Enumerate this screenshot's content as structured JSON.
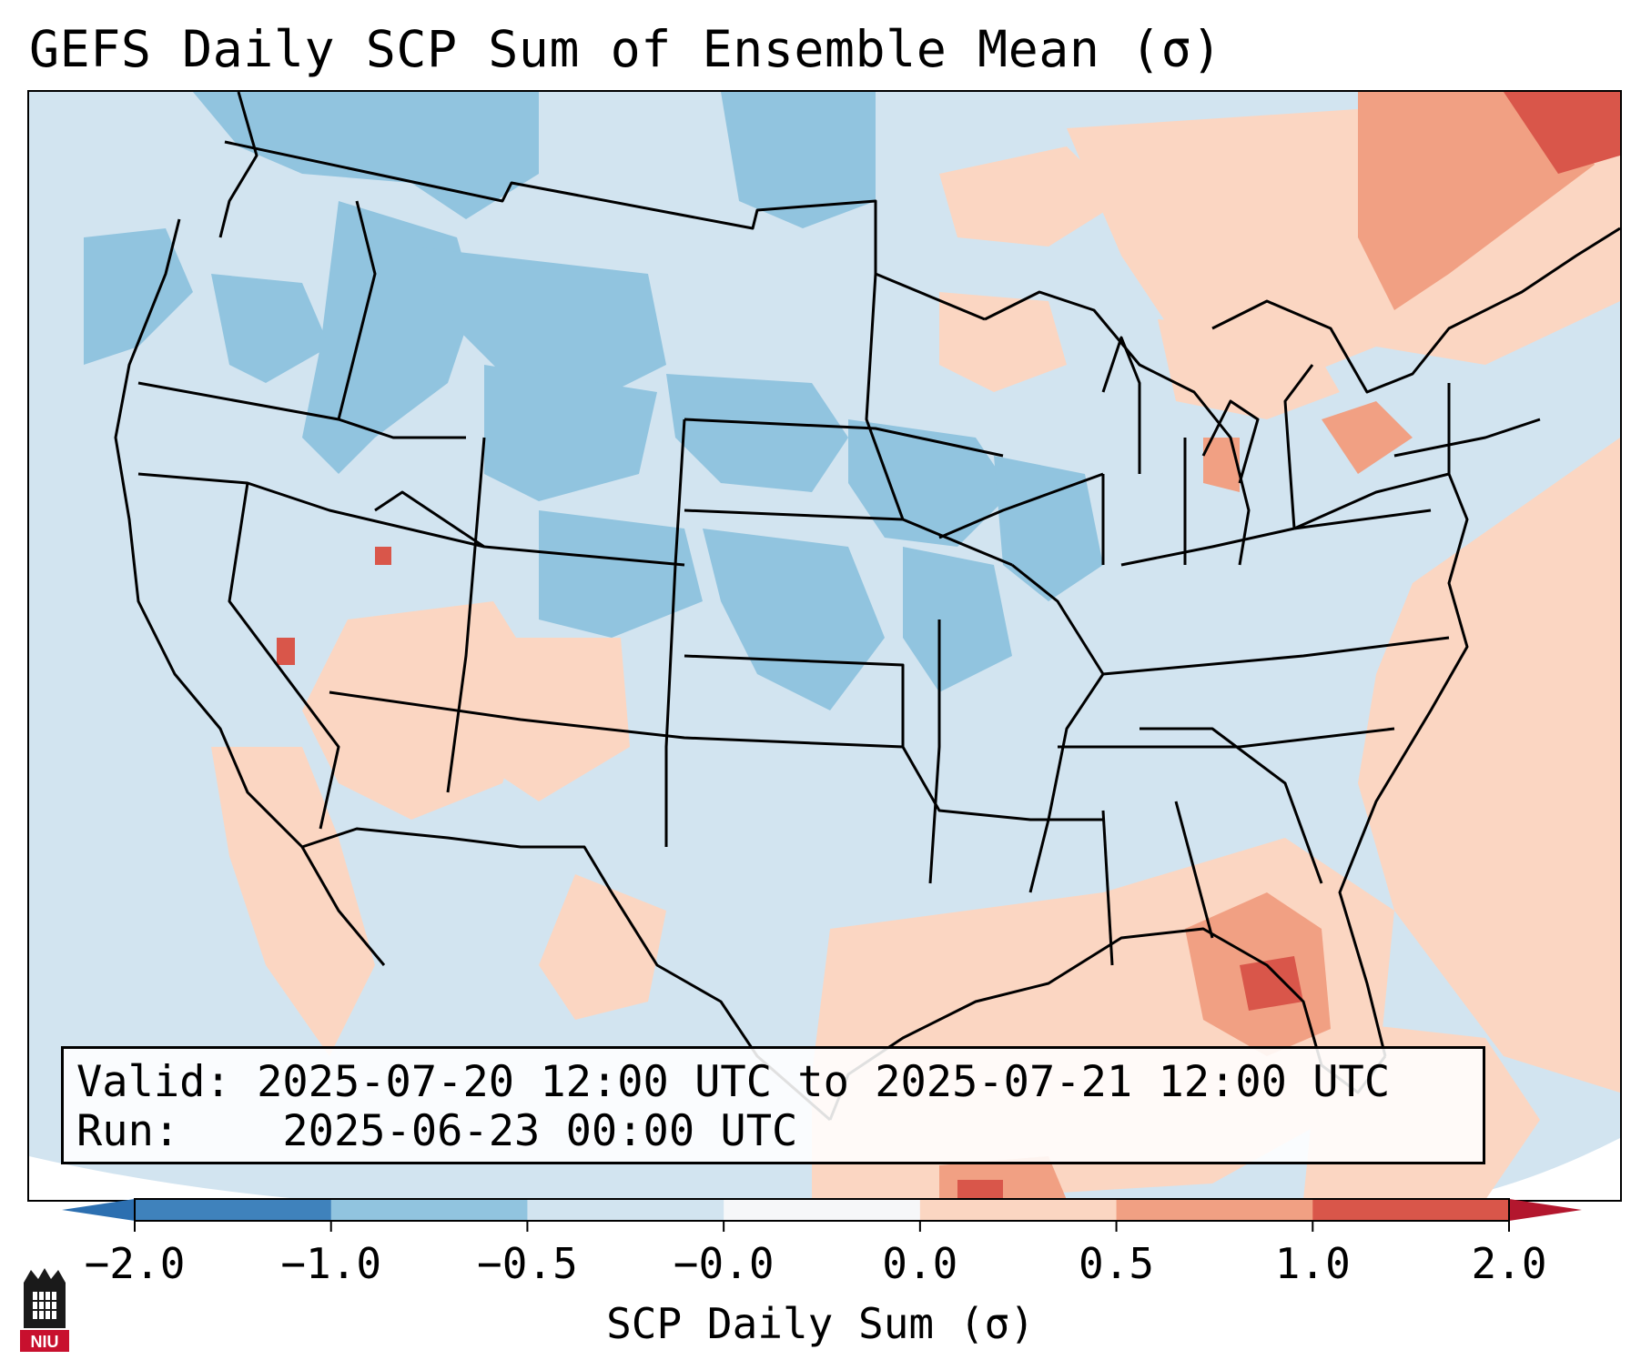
{
  "title": "GEFS Daily SCP Sum of Ensemble Mean (σ)",
  "info": {
    "valid_label": "Valid:",
    "valid_range": "2025-07-20 12:00 UTC to 2025-07-21 12:00 UTC",
    "run_label": "Run:",
    "run_time": "2025-06-23 00:00 UTC"
  },
  "colorbar": {
    "label": "SCP Daily Sum (σ)",
    "ticks": [
      "−2.0",
      "−1.0",
      "−0.5",
      "−0.0",
      "0.0",
      "0.5",
      "1.0",
      "2.0"
    ],
    "colors": [
      "#3f82bc",
      "#91c4df",
      "#d2e4f0",
      "#f6f7f9",
      "#fbd6c2",
      "#f1a083",
      "#d9564a"
    ],
    "extend_low_color": "#2c6fb0",
    "extend_high_color": "#b3172e"
  },
  "logo": {
    "text": "NIU"
  },
  "palette": {
    "neutral_neg": "#d2e4f0",
    "neg_half": "#91c4df",
    "pos_half": "#fbd6c2",
    "pos_one": "#f1a083",
    "pos_two": "#d9564a",
    "pos_max": "#b3172e"
  }
}
